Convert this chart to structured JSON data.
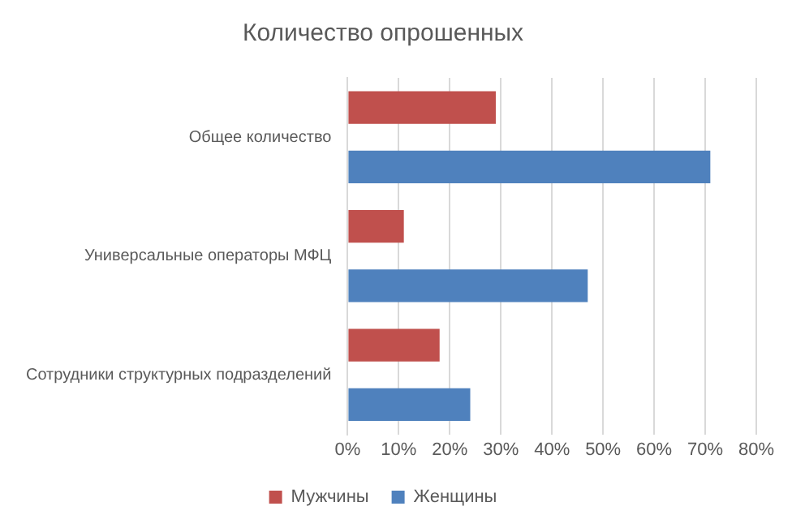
{
  "chart_data": {
    "type": "bar",
    "orientation": "horizontal",
    "title": "Количество опрошенных",
    "categories": [
      "Общее количество",
      "Универсальные операторы МФЦ",
      "Сотрудники структурных подразделений"
    ],
    "series": [
      {
        "name": "Мужчины",
        "color": "#c0504d",
        "values": [
          29,
          11,
          18
        ]
      },
      {
        "name": "Женщины",
        "color": "#4f81bd",
        "values": [
          71,
          47,
          24
        ]
      }
    ],
    "xlim": [
      0,
      80
    ],
    "xticks": [
      {
        "value": 0,
        "label": "0%"
      },
      {
        "value": 10,
        "label": "10%"
      },
      {
        "value": 20,
        "label": "20%"
      },
      {
        "value": 30,
        "label": "30%"
      },
      {
        "value": 40,
        "label": "40%"
      },
      {
        "value": 50,
        "label": "50%"
      },
      {
        "value": 60,
        "label": "60%"
      },
      {
        "value": 70,
        "label": "70%"
      },
      {
        "value": 80,
        "label": "80%"
      }
    ],
    "grid": "x",
    "legend": "bottom"
  }
}
